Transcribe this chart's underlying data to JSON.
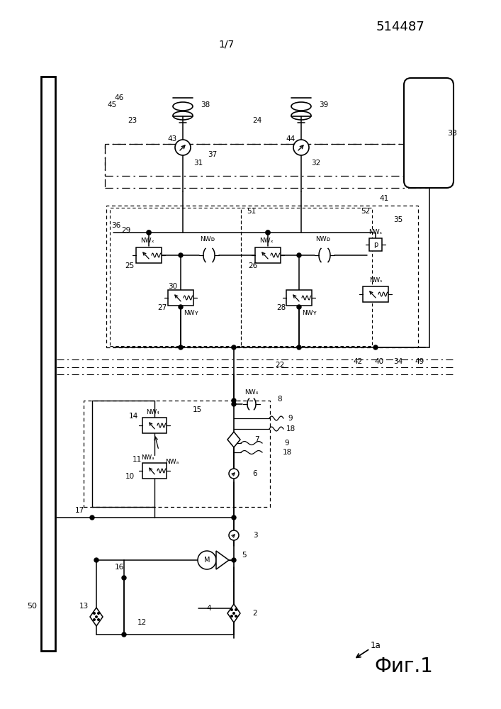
{
  "title_number": "514487",
  "page_label": "1/7",
  "fig_label": "Фиг.1",
  "fig_ref": "1a",
  "bg_color": "#ffffff"
}
